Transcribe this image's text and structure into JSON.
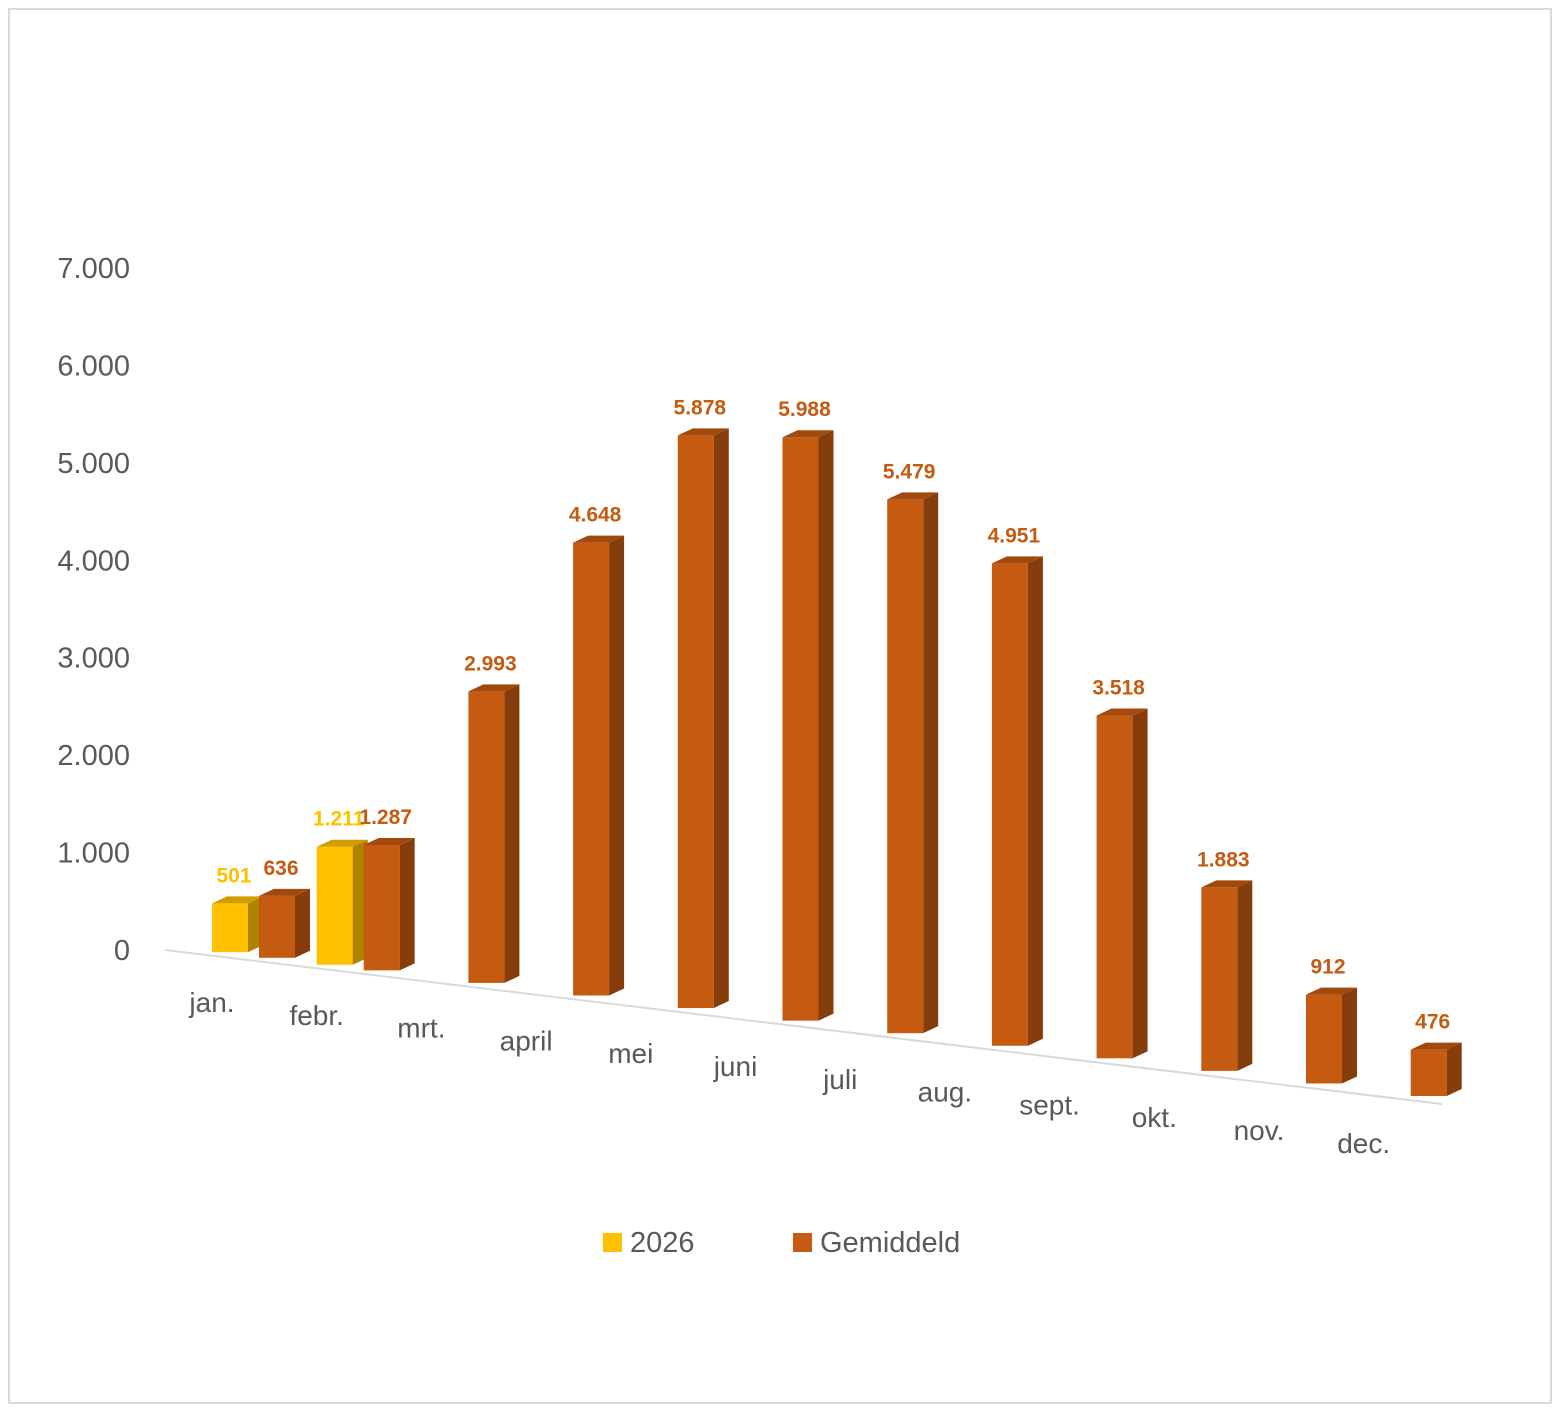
{
  "chart_data": {
    "type": "bar",
    "categories": [
      "jan.",
      "febr.",
      "mrt.",
      "april",
      "mei",
      "juni",
      "juli",
      "aug.",
      "sept.",
      "okt.",
      "nov.",
      "dec."
    ],
    "series": [
      {
        "name": "2026",
        "color": "#FFC000",
        "values": [
          501,
          1211,
          null,
          null,
          null,
          null,
          null,
          null,
          null,
          null,
          null,
          null
        ],
        "labels": [
          "501",
          "1.211",
          "",
          "",
          "",
          "",
          "",
          "",
          "",
          "",
          "",
          ""
        ]
      },
      {
        "name": "Gemiddeld",
        "color": "#C55A11",
        "values": [
          636,
          1287,
          2993,
          4648,
          5878,
          5988,
          5479,
          4951,
          3518,
          1883,
          912,
          476
        ],
        "labels": [
          "636",
          "1.287",
          "2.993",
          "4.648",
          "5.878",
          "5.988",
          "5.479",
          "4.951",
          "3.518",
          "1.883",
          "912",
          "476"
        ]
      }
    ],
    "yticks": [
      "0",
      "1.000",
      "2.000",
      "3.000",
      "4.000",
      "5.000",
      "6.000",
      "7.000"
    ],
    "ylim": [
      0,
      7000
    ],
    "title": "",
    "xlabel": "",
    "ylabel": "",
    "grid": false,
    "legend": "bottom",
    "style": "3d-clustered-column"
  }
}
